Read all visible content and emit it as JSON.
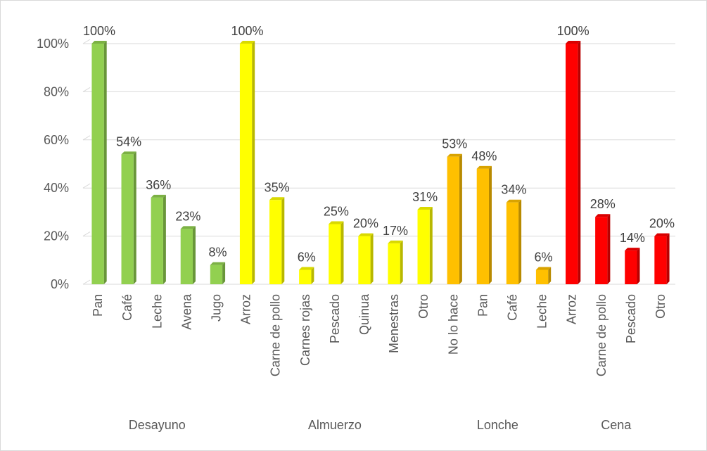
{
  "chart_data": {
    "type": "bar",
    "title": "",
    "xlabel": "",
    "ylabel": "",
    "ylim": [
      0,
      100
    ],
    "y_ticks": [
      "0%",
      "20%",
      "40%",
      "60%",
      "80%",
      "100%"
    ],
    "grid": true,
    "legend": "none",
    "groups": [
      {
        "name": "Desayuno",
        "color": "#92d050",
        "items": [
          {
            "label": "Pan",
            "value": 100,
            "text": "100%"
          },
          {
            "label": "Café",
            "value": 54,
            "text": "54%"
          },
          {
            "label": "Leche",
            "value": 36,
            "text": "36%"
          },
          {
            "label": "Avena",
            "value": 23,
            "text": "23%"
          },
          {
            "label": "Jugo",
            "value": 8,
            "text": "8%"
          }
        ]
      },
      {
        "name": "Almuerzo",
        "color": "#ffff00",
        "items": [
          {
            "label": "Arroz",
            "value": 100,
            "text": "100%"
          },
          {
            "label": "Carne de pollo",
            "value": 35,
            "text": "35%"
          },
          {
            "label": "Carnes rojas",
            "value": 6,
            "text": "6%"
          },
          {
            "label": "Pescado",
            "value": 25,
            "text": "25%"
          },
          {
            "label": "Quinua",
            "value": 20,
            "text": "20%"
          },
          {
            "label": "Menestras",
            "value": 17,
            "text": "17%"
          },
          {
            "label": "Otro",
            "value": 31,
            "text": "31%"
          }
        ]
      },
      {
        "name": "Lonche",
        "color": "#ffc000",
        "items": [
          {
            "label": "No lo hace",
            "value": 53,
            "text": "53%"
          },
          {
            "label": "Pan",
            "value": 48,
            "text": "48%"
          },
          {
            "label": "Café",
            "value": 34,
            "text": "34%"
          },
          {
            "label": "Leche",
            "value": 6,
            "text": "6%"
          }
        ]
      },
      {
        "name": "Cena",
        "color": "#ff0000",
        "items": [
          {
            "label": "Arroz",
            "value": 100,
            "text": "100%"
          },
          {
            "label": "Carne de pollo",
            "value": 28,
            "text": "28%"
          },
          {
            "label": "Pescado",
            "value": 14,
            "text": "14%"
          },
          {
            "label": "Otro",
            "value": 20,
            "text": "20%"
          }
        ]
      }
    ]
  }
}
